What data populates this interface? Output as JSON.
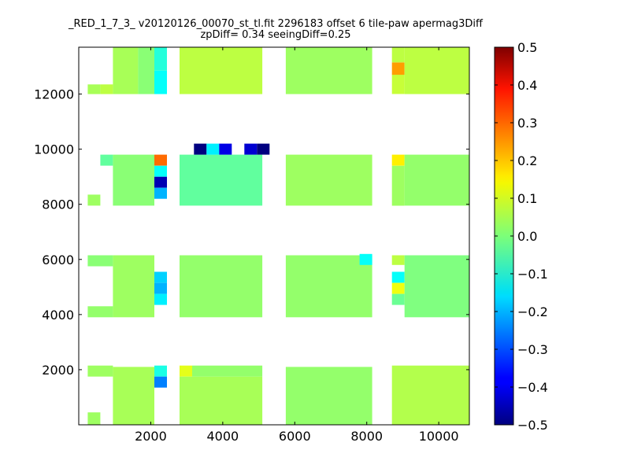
{
  "chart_data": {
    "type": "heatmap",
    "title": "_RED_1_7_3_ v20120126_00070_st_tl.fit 2296183 offset 6 tile-paw apermag3Diff",
    "subtitle": "zpDiff= 0.34 seeingDiff=0.25",
    "xlim": [
      0,
      10850
    ],
    "ylim": [
      0,
      13700
    ],
    "x_ticks": [
      "2000",
      "4000",
      "6000",
      "8000",
      "10000"
    ],
    "y_ticks": [
      "2000",
      "4000",
      "6000",
      "8000",
      "10000",
      "12000"
    ],
    "x_tick_values": [
      2000,
      4000,
      6000,
      8000,
      10000
    ],
    "y_tick_values": [
      2000,
      4000,
      6000,
      8000,
      10000,
      12000
    ],
    "colorbar": {
      "range": [
        -0.5,
        0.5
      ],
      "colormap": "jet",
      "ticks": [
        "0.5",
        "0.4",
        "0.3",
        "0.2",
        "0.1",
        "0.0",
        "−0.1",
        "−0.2",
        "−0.3",
        "−0.4",
        "−0.5"
      ]
    },
    "cells": [
      {
        "x": 250,
        "y": 12000,
        "w": 350,
        "h": 350,
        "v": 0.04
      },
      {
        "x": 600,
        "y": 12000,
        "w": 350,
        "h": 350,
        "v": 0.06
      },
      {
        "x": 950,
        "y": 12000,
        "w": 700,
        "h": 1700,
        "v": 0.04
      },
      {
        "x": 1650,
        "y": 12000,
        "w": 450,
        "h": 1700,
        "v": 0.01
      },
      {
        "x": 2100,
        "y": 12000,
        "w": 350,
        "h": 850,
        "v": -0.12
      },
      {
        "x": 2100,
        "y": 12850,
        "w": 350,
        "h": 850,
        "v": -0.09
      },
      {
        "x": 2800,
        "y": 12000,
        "w": 2300,
        "h": 1700,
        "v": 0.06
      },
      {
        "x": 5750,
        "y": 12000,
        "w": 2400,
        "h": 1700,
        "v": 0.03
      },
      {
        "x": 8700,
        "y": 12700,
        "w": 350,
        "h": 450,
        "v": 0.22
      },
      {
        "x": 8700,
        "y": 12000,
        "w": 350,
        "h": 700,
        "v": 0.07
      },
      {
        "x": 8700,
        "y": 13150,
        "w": 350,
        "h": 550,
        "v": 0.06
      },
      {
        "x": 9050,
        "y": 12000,
        "w": 1800,
        "h": 1700,
        "v": 0.06
      },
      {
        "x": 250,
        "y": 7950,
        "w": 350,
        "h": 400,
        "v": 0.03
      },
      {
        "x": 600,
        "y": 9400,
        "w": 350,
        "h": 400,
        "v": -0.03
      },
      {
        "x": 950,
        "y": 7950,
        "w": 1150,
        "h": 1850,
        "v": 0.01
      },
      {
        "x": 2100,
        "y": 9400,
        "w": 350,
        "h": 400,
        "v": 0.27
      },
      {
        "x": 2100,
        "y": 9000,
        "w": 350,
        "h": 400,
        "v": -0.12
      },
      {
        "x": 2100,
        "y": 8600,
        "w": 350,
        "h": 400,
        "v": -0.45
      },
      {
        "x": 2100,
        "y": 8200,
        "w": 350,
        "h": 400,
        "v": -0.2
      },
      {
        "x": 2800,
        "y": 7950,
        "w": 2300,
        "h": 1850,
        "v": -0.03
      },
      {
        "x": 3200,
        "y": 9800,
        "w": 350,
        "h": 400,
        "v": -0.5
      },
      {
        "x": 3550,
        "y": 9800,
        "w": 350,
        "h": 400,
        "v": -0.14
      },
      {
        "x": 3900,
        "y": 9800,
        "w": 350,
        "h": 400,
        "v": -0.4
      },
      {
        "x": 4600,
        "y": 9800,
        "w": 350,
        "h": 400,
        "v": -0.42
      },
      {
        "x": 4950,
        "y": 9800,
        "w": 350,
        "h": 400,
        "v": -0.5
      },
      {
        "x": 5750,
        "y": 7950,
        "w": 2400,
        "h": 1850,
        "v": 0.03
      },
      {
        "x": 8700,
        "y": 9400,
        "w": 350,
        "h": 400,
        "v": 0.14
      },
      {
        "x": 8700,
        "y": 7950,
        "w": 350,
        "h": 1450,
        "v": 0.03
      },
      {
        "x": 9050,
        "y": 7950,
        "w": 1800,
        "h": 1850,
        "v": 0.02
      },
      {
        "x": 250,
        "y": 3900,
        "w": 700,
        "h": 400,
        "v": 0.02
      },
      {
        "x": 250,
        "y": 5750,
        "w": 700,
        "h": 400,
        "v": 0.01
      },
      {
        "x": 950,
        "y": 3900,
        "w": 1150,
        "h": 2250,
        "v": 0.03
      },
      {
        "x": 2100,
        "y": 5150,
        "w": 350,
        "h": 400,
        "v": -0.17
      },
      {
        "x": 2100,
        "y": 4750,
        "w": 350,
        "h": 400,
        "v": -0.2
      },
      {
        "x": 2100,
        "y": 4350,
        "w": 350,
        "h": 400,
        "v": -0.14
      },
      {
        "x": 2800,
        "y": 3900,
        "w": 2300,
        "h": 2250,
        "v": 0.02
      },
      {
        "x": 5750,
        "y": 3900,
        "w": 2400,
        "h": 2250,
        "v": 0.02
      },
      {
        "x": 7800,
        "y": 5800,
        "w": 350,
        "h": 400,
        "v": -0.12
      },
      {
        "x": 8700,
        "y": 5800,
        "w": 350,
        "h": 350,
        "v": 0.06
      },
      {
        "x": 8700,
        "y": 5150,
        "w": 350,
        "h": 400,
        "v": -0.12
      },
      {
        "x": 8700,
        "y": 4750,
        "w": 350,
        "h": 400,
        "v": 0.11
      },
      {
        "x": 8700,
        "y": 4350,
        "w": 350,
        "h": 400,
        "v": -0.02
      },
      {
        "x": 9050,
        "y": 3900,
        "w": 1800,
        "h": 2250,
        "v": 0.0
      },
      {
        "x": 250,
        "y": 1750,
        "w": 700,
        "h": 400,
        "v": 0.03
      },
      {
        "x": 250,
        "y": 0,
        "w": 350,
        "h": 450,
        "v": 0.03
      },
      {
        "x": 950,
        "y": 0,
        "w": 1150,
        "h": 2100,
        "v": 0.04
      },
      {
        "x": 2100,
        "y": 1750,
        "w": 350,
        "h": 400,
        "v": -0.1
      },
      {
        "x": 2100,
        "y": 1350,
        "w": 350,
        "h": 400,
        "v": -0.25
      },
      {
        "x": 2800,
        "y": 1750,
        "w": 350,
        "h": 400,
        "v": 0.1
      },
      {
        "x": 2800,
        "y": 0,
        "w": 2300,
        "h": 1750,
        "v": 0.04
      },
      {
        "x": 3150,
        "y": 1750,
        "w": 1950,
        "h": 400,
        "v": 0.02
      },
      {
        "x": 5750,
        "y": 0,
        "w": 2400,
        "h": 2100,
        "v": 0.02
      },
      {
        "x": 8700,
        "y": 0,
        "w": 2150,
        "h": 2150,
        "v": 0.05
      }
    ]
  }
}
